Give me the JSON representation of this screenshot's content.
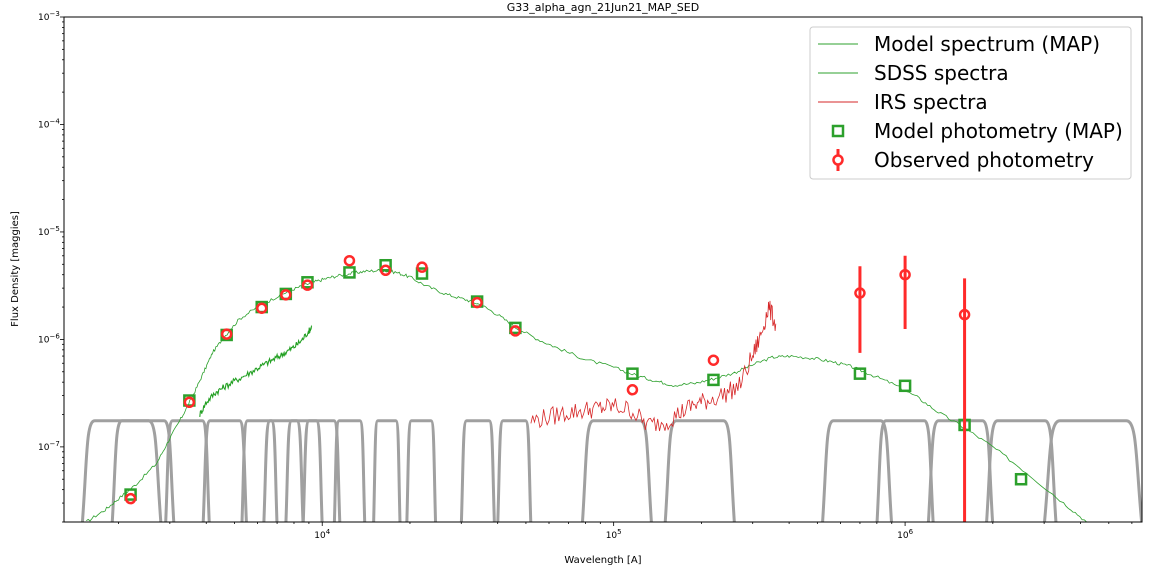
{
  "chart_data": {
    "type": "scatter",
    "title": "G33_alpha_agn_21Jun21_MAP_SED",
    "xlabel": "Wavelength [A]",
    "ylabel": "Flux Density [maggies]",
    "xscale": "log",
    "yscale": "log",
    "xlim": [
      1300,
      6500000
    ],
    "ylim": [
      2e-08,
      0.001
    ],
    "x_ticks": [
      {
        "value": 10000,
        "base": "10",
        "exp": "4"
      },
      {
        "value": 100000,
        "base": "10",
        "exp": "5"
      },
      {
        "value": 1000000,
        "base": "10",
        "exp": "6"
      }
    ],
    "y_ticks": [
      {
        "value": 1e-07,
        "base": "10",
        "exp": "−7"
      },
      {
        "value": 1e-06,
        "base": "10",
        "exp": "−6"
      },
      {
        "value": 1e-05,
        "base": "10",
        "exp": "−5"
      },
      {
        "value": 0.0001,
        "base": "10",
        "exp": "−4"
      },
      {
        "value": 0.001,
        "base": "10",
        "exp": "−3"
      }
    ],
    "legend": {
      "position": "top-right",
      "entries": [
        {
          "label": "Model spectrum (MAP)",
          "kind": "line",
          "color": "#2ca02c"
        },
        {
          "label": "SDSS spectra",
          "kind": "line",
          "color": "#2ca02c"
        },
        {
          "label": "IRS spectra",
          "kind": "line",
          "color": "#d62728"
        },
        {
          "label": "Model photometry (MAP)",
          "kind": "square",
          "color": "#2ca02c"
        },
        {
          "label": "Observed photometry",
          "kind": "circle",
          "color": "#ff2a2a"
        }
      ]
    },
    "colors": {
      "model": "#2ca02c",
      "sdss": "#23a023",
      "irs": "#d62728",
      "observed": "#ff2a2a",
      "filters": "#a0a0a0"
    },
    "series": [
      {
        "name": "Model spectrum (MAP)",
        "kind": "line",
        "points": [
          [
            1550,
            2e-08
          ],
          [
            1800,
            2.6e-08
          ],
          [
            2000,
            3.3e-08
          ],
          [
            2300,
            4.5e-08
          ],
          [
            2700,
            7e-08
          ],
          [
            3000,
            1.2e-07
          ],
          [
            3300,
            1.9e-07
          ],
          [
            3600,
            3e-07
          ],
          [
            3900,
            4.8e-07
          ],
          [
            4200,
            7.5e-07
          ],
          [
            4600,
            1.05e-06
          ],
          [
            5200,
            1.55e-06
          ],
          [
            6000,
            2e-06
          ],
          [
            7000,
            2.5e-06
          ],
          [
            8000,
            2.95e-06
          ],
          [
            9000,
            3.3e-06
          ],
          [
            10000,
            3.6e-06
          ],
          [
            11000,
            3.85e-06
          ],
          [
            12500,
            4.1e-06
          ],
          [
            14000,
            4.3e-06
          ],
          [
            16000,
            4.4e-06
          ],
          [
            18000,
            4.2e-06
          ],
          [
            20000,
            3.8e-06
          ],
          [
            23000,
            3.1e-06
          ],
          [
            27000,
            2.6e-06
          ],
          [
            31000,
            2.35e-06
          ],
          [
            35000,
            2.1e-06
          ],
          [
            40000,
            1.7e-06
          ],
          [
            46000,
            1.3e-06
          ],
          [
            55000,
            1e-06
          ],
          [
            65000,
            8.2e-07
          ],
          [
            80000,
            6.5e-07
          ],
          [
            100000,
            5.5e-07
          ],
          [
            120000,
            4.6e-07
          ],
          [
            140000,
            4.1e-07
          ],
          [
            160000,
            3.75e-07
          ],
          [
            190000,
            3.9e-07
          ],
          [
            220000,
            4.3e-07
          ],
          [
            260000,
            4.9e-07
          ],
          [
            300000,
            5.8e-07
          ],
          [
            350000,
            6.8e-07
          ],
          [
            400000,
            7e-07
          ],
          [
            480000,
            6.7e-07
          ],
          [
            560000,
            6.2e-07
          ],
          [
            650000,
            5.6e-07
          ],
          [
            750000,
            4.8e-07
          ],
          [
            900000,
            3.9e-07
          ],
          [
            1100000,
            2.9e-07
          ],
          [
            1300000,
            2.1e-07
          ],
          [
            1600000,
            1.5e-07
          ],
          [
            2000000,
            1e-07
          ],
          [
            2600000,
            5.8e-08
          ],
          [
            3500000,
            3e-08
          ],
          [
            4200000,
            2e-08
          ]
        ]
      },
      {
        "name": "SDSS spectra",
        "kind": "line",
        "points": [
          [
            3800,
            2e-07
          ],
          [
            4000,
            2.6e-07
          ],
          [
            4300,
            3.2e-07
          ],
          [
            4600,
            3.6e-07
          ],
          [
            5000,
            4.1e-07
          ],
          [
            5500,
            4.7e-07
          ],
          [
            6000,
            5.4e-07
          ],
          [
            6500,
            6.1e-07
          ],
          [
            7000,
            6.8e-07
          ],
          [
            7500,
            7.6e-07
          ],
          [
            8000,
            8.5e-07
          ],
          [
            8500,
            9.8e-07
          ],
          [
            9000,
            1.2e-06
          ],
          [
            9200,
            1.3e-06
          ]
        ]
      },
      {
        "name": "IRS spectra",
        "kind": "line",
        "points": [
          [
            52000,
            1.75e-07
          ],
          [
            60000,
            1.9e-07
          ],
          [
            70000,
            2.1e-07
          ],
          [
            80000,
            2.2e-07
          ],
          [
            90000,
            2.3e-07
          ],
          [
            100000,
            2.4e-07
          ],
          [
            115000,
            2.2e-07
          ],
          [
            130000,
            1.6e-07
          ],
          [
            150000,
            1.7e-07
          ],
          [
            170000,
            2.1e-07
          ],
          [
            190000,
            2.5e-07
          ],
          [
            210000,
            2.7e-07
          ],
          [
            240000,
            3.1e-07
          ],
          [
            270000,
            3.7e-07
          ],
          [
            300000,
            7e-07
          ],
          [
            320000,
            1.1e-06
          ],
          [
            340000,
            2e-06
          ],
          [
            360000,
            1.4e-06
          ]
        ]
      },
      {
        "name": "Model photometry (MAP)",
        "kind": "square",
        "points": [
          [
            2200,
            3.6e-08
          ],
          [
            3500,
            2.7e-07
          ],
          [
            4700,
            1.1e-06
          ],
          [
            6200,
            2e-06
          ],
          [
            7500,
            2.65e-06
          ],
          [
            8900,
            3.4e-06
          ],
          [
            12400,
            4.2e-06
          ],
          [
            16500,
            4.9e-06
          ],
          [
            22000,
            4.1e-06
          ],
          [
            34000,
            2.25e-06
          ],
          [
            46000,
            1.28e-06
          ],
          [
            116000,
            4.8e-07
          ],
          [
            220000,
            4.2e-07
          ],
          [
            700000,
            4.8e-07
          ],
          [
            1000000,
            3.7e-07
          ],
          [
            1600000,
            1.6e-07
          ],
          [
            2500000,
            5e-08
          ]
        ]
      },
      {
        "name": "Observed photometry",
        "kind": "circle",
        "points": [
          {
            "x": 2200,
            "y": 3.3e-08
          },
          {
            "x": 3500,
            "y": 2.6e-07
          },
          {
            "x": 4700,
            "y": 1.12e-06
          },
          {
            "x": 6200,
            "y": 1.95e-06
          },
          {
            "x": 7500,
            "y": 2.6e-06
          },
          {
            "x": 8900,
            "y": 3.2e-06
          },
          {
            "x": 12400,
            "y": 5.4e-06
          },
          {
            "x": 16500,
            "y": 4.4e-06
          },
          {
            "x": 22000,
            "y": 4.7e-06
          },
          {
            "x": 34000,
            "y": 2.2e-06
          },
          {
            "x": 46000,
            "y": 1.2e-06
          },
          {
            "x": 116000,
            "y": 3.4e-07
          },
          {
            "x": 220000,
            "y": 6.4e-07
          },
          {
            "x": 700000,
            "y": 2.7e-06,
            "ylow": 7.5e-07,
            "yhigh": 4.8e-06
          },
          {
            "x": 1000000,
            "y": 4e-06,
            "ylow": 1.25e-06,
            "yhigh": 6e-06
          },
          {
            "x": 1600000,
            "y": 1.7e-06,
            "ylow": 2e-08,
            "yhigh": 3.7e-06
          }
        ]
      }
    ]
  }
}
